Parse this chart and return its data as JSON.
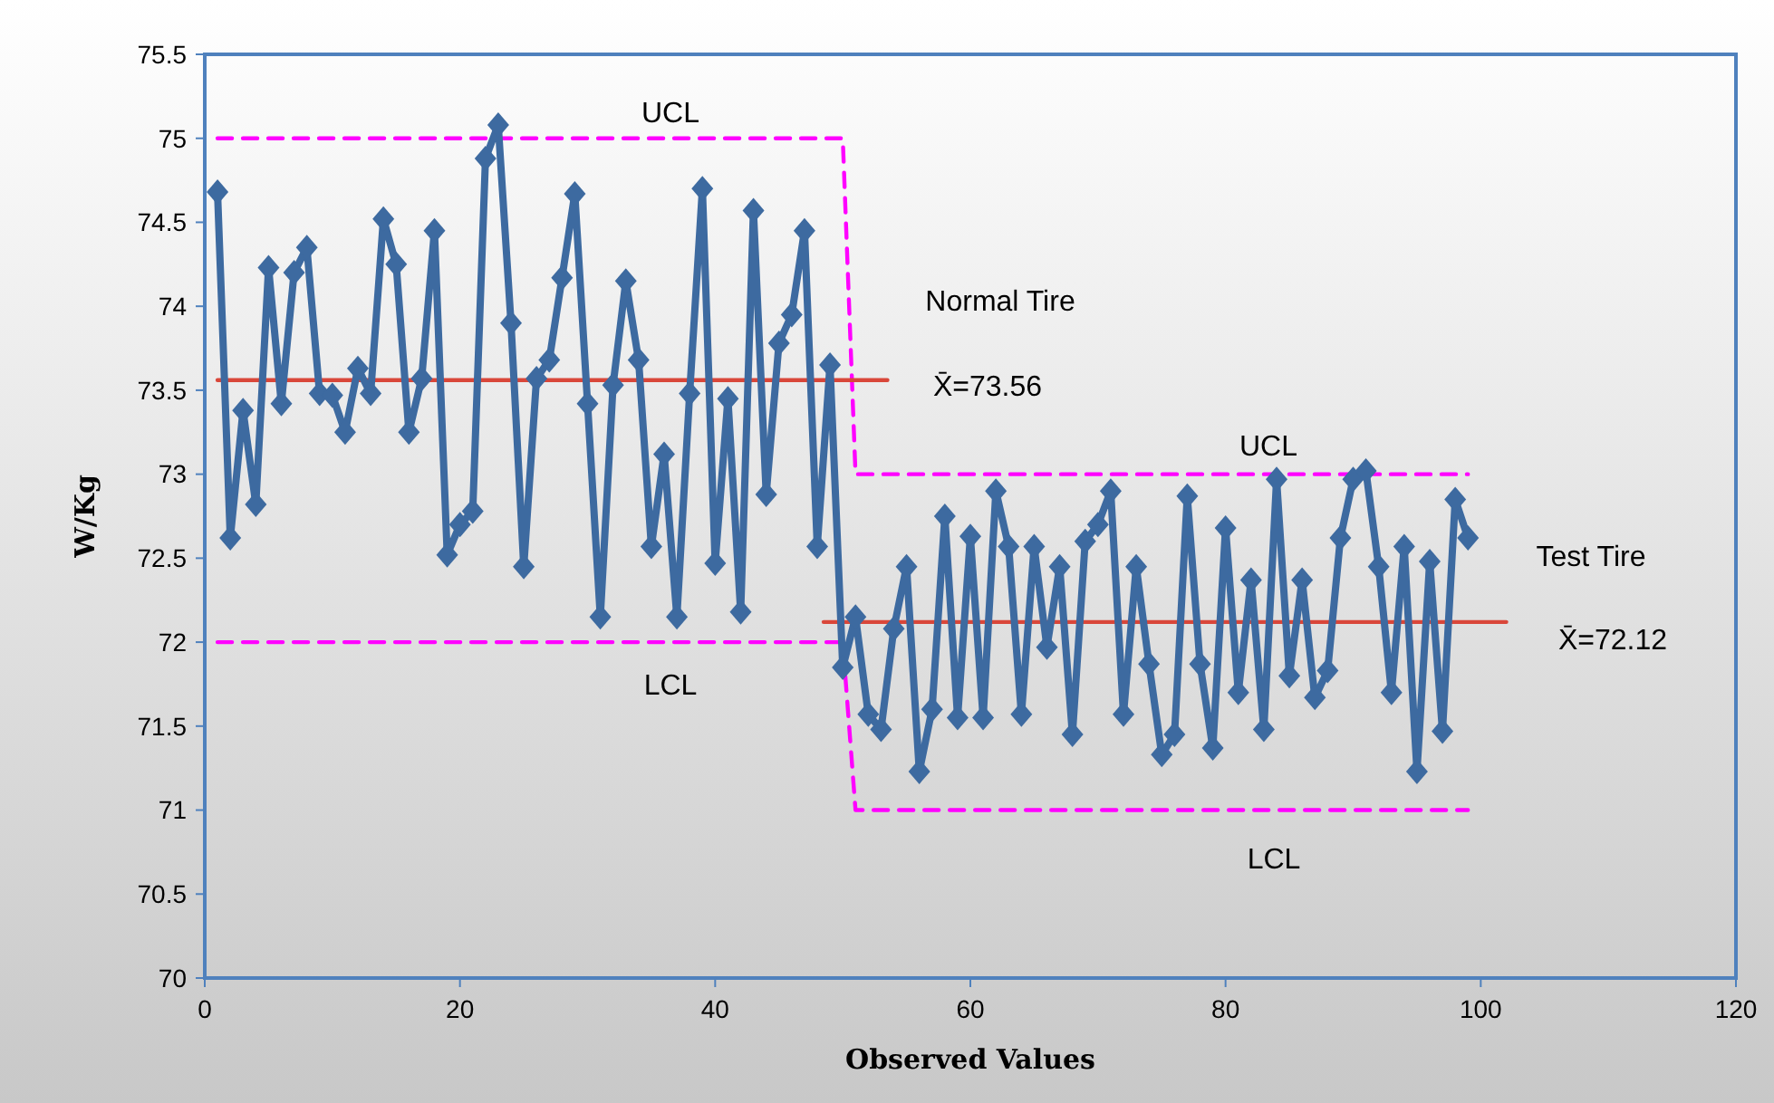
{
  "chart_data": {
    "type": "line",
    "xlabel": "Observed Values",
    "ylabel": "W/Kg",
    "xlim": [
      0,
      120
    ],
    "xticks": [
      0,
      20,
      40,
      60,
      80,
      100,
      120
    ],
    "ylim": [
      70,
      75.5
    ],
    "yticks": [
      70,
      70.5,
      71,
      71.5,
      72,
      72.5,
      73,
      73.5,
      74,
      74.5,
      75,
      75.5
    ],
    "grid": false,
    "series": [
      {
        "color": "#ff00ff",
        "marker": "none",
        "line_style": "dashed",
        "x": [
          1,
          50,
          51,
          99
        ],
        "values": [
          75,
          75,
          73,
          73
        ]
      },
      {
        "color": "#ff00ff",
        "marker": "none",
        "line_style": "dashed",
        "x": [
          1,
          50,
          51,
          99
        ],
        "values": [
          72,
          72,
          71,
          71
        ]
      },
      {
        "color": "#d9473a",
        "marker": "none",
        "line_style": "solid",
        "x": [
          1,
          53.5
        ],
        "values": [
          73.56,
          73.56
        ]
      },
      {
        "color": "#d9473a",
        "marker": "none",
        "line_style": "solid",
        "x": [
          48.5,
          102
        ],
        "values": [
          72.12,
          72.12
        ]
      },
      {
        "color": "#3d6aa0",
        "marker": "diamond",
        "line_style": "solid",
        "x": [
          1,
          2,
          3,
          4,
          5,
          6,
          7,
          8,
          9,
          10,
          11,
          12,
          13,
          14,
          15,
          16,
          17,
          18,
          19,
          20,
          21,
          22,
          23,
          24,
          25,
          26,
          27,
          28,
          29,
          30,
          31,
          32,
          33,
          34,
          35,
          36,
          37,
          38,
          39,
          40,
          41,
          42,
          43,
          44,
          45,
          46,
          47,
          48,
          49,
          50,
          51,
          52,
          53,
          54,
          55,
          56,
          57,
          58,
          59,
          60,
          61,
          62,
          63,
          64,
          65,
          66,
          67,
          68,
          69,
          70,
          71,
          72,
          73,
          74,
          75,
          76,
          77,
          78,
          79,
          80,
          81,
          82,
          83,
          84,
          85,
          86,
          87,
          88,
          89,
          90,
          91,
          92,
          93,
          94,
          95,
          96,
          97,
          98,
          99
        ],
        "values": [
          74.68,
          72.62,
          73.38,
          72.82,
          74.23,
          73.42,
          74.2,
          74.35,
          73.48,
          73.47,
          73.25,
          73.63,
          73.48,
          74.52,
          74.25,
          73.25,
          73.57,
          74.45,
          72.52,
          72.7,
          72.78,
          74.88,
          75.08,
          73.9,
          72.45,
          73.57,
          73.68,
          74.17,
          74.67,
          73.42,
          72.15,
          73.53,
          74.15,
          73.68,
          72.57,
          73.12,
          72.15,
          73.48,
          74.7,
          72.47,
          73.45,
          72.18,
          74.57,
          72.88,
          73.78,
          73.95,
          74.45,
          72.57,
          73.65,
          71.85,
          72.15,
          71.57,
          71.48,
          72.08,
          72.45,
          71.23,
          71.6,
          72.75,
          71.55,
          72.63,
          71.55,
          72.9,
          72.57,
          71.57,
          72.57,
          71.97,
          72.45,
          71.45,
          72.6,
          72.7,
          72.9,
          71.57,
          72.45,
          71.87,
          71.33,
          71.45,
          72.87,
          71.87,
          71.37,
          72.68,
          71.7,
          72.37,
          71.48,
          72.97,
          71.8,
          72.37,
          71.67,
          71.83,
          72.62,
          72.97,
          73.02,
          72.45,
          71.7,
          72.57,
          71.23,
          72.48,
          71.47,
          72.85,
          72.62
        ]
      }
    ],
    "annotations": [
      "UCL",
      "LCL",
      "Normal Tire",
      "X̄=73.56",
      "UCL",
      "Test Tire",
      "X̄=72.12",
      "LCL"
    ]
  }
}
